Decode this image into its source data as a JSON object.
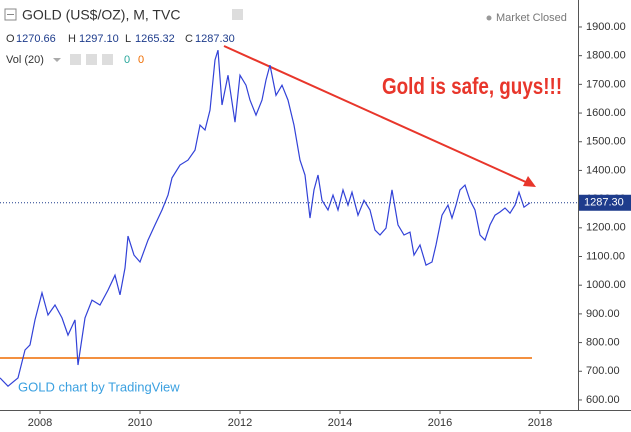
{
  "chart_data": {
    "type": "line",
    "title": "GOLD (US$/OZ), M, TVC",
    "status": "Market Closed",
    "ohlc": {
      "labels": [
        "O",
        "H",
        "L",
        "C"
      ],
      "values": [
        1270.66,
        1297.1,
        1265.32,
        1287.3
      ],
      "value_labels": [
        "1270.66",
        "1297.10",
        "1265.32",
        "1287.30"
      ]
    },
    "volume": {
      "name": "Vol (20)",
      "values": [
        0,
        0
      ],
      "colors": [
        "#26a69a",
        "#ef6c00"
      ]
    },
    "annotation": "Gold is safe, guys!!!",
    "annotation_color": "#e8362b",
    "watermark": "GOLD chart by TradingView",
    "last_price": 1287.3,
    "last_price_label": "1287.30",
    "color": "#3242d8",
    "x": [
      2007.2,
      2007.36,
      2007.56,
      2007.7,
      2007.8,
      2007.9,
      2008.04,
      2008.16,
      2008.3,
      2008.44,
      2008.56,
      2008.7,
      2008.76,
      2008.9,
      2009.04,
      2009.2,
      2009.36,
      2009.5,
      2009.6,
      2009.7,
      2009.76,
      2009.88,
      2010,
      2010.16,
      2010.3,
      2010.44,
      2010.56,
      2010.64,
      2010.8,
      2010.96,
      2011.1,
      2011.2,
      2011.3,
      2011.4,
      2011.5,
      2011.56,
      2011.64,
      2011.76,
      2011.9,
      2012,
      2012.12,
      2012.2,
      2012.32,
      2012.44,
      2012.52,
      2012.6,
      2012.72,
      2012.84,
      2012.96,
      2013.08,
      2013.2,
      2013.3,
      2013.4,
      2013.48,
      2013.56,
      2013.64,
      2013.76,
      2013.86,
      2013.96,
      2014.06,
      2014.16,
      2014.24,
      2014.36,
      2014.48,
      2014.6,
      2014.7,
      2014.8,
      2014.92,
      2015.04,
      2015.16,
      2015.28,
      2015.4,
      2015.48,
      2015.6,
      2015.72,
      2015.84,
      2015.92,
      2016.04,
      2016.16,
      2016.24,
      2016.32,
      2016.4,
      2016.5,
      2016.6,
      2016.7,
      2016.8,
      2016.9,
      2017,
      2017.1,
      2017.2,
      2017.3,
      2017.4,
      2017.5,
      2017.58,
      2017.68,
      2017.8
    ],
    "values": [
      677,
      648,
      677,
      774,
      792,
      879,
      973,
      896,
      931,
      886,
      826,
      879,
      722,
      886,
      948,
      931,
      983,
      1035,
      966,
      1060,
      1171,
      1105,
      1081,
      1157,
      1210,
      1262,
      1314,
      1374,
      1419,
      1436,
      1471,
      1558,
      1541,
      1610,
      1785,
      1819,
      1628,
      1732,
      1568,
      1732,
      1697,
      1645,
      1593,
      1645,
      1715,
      1767,
      1662,
      1697,
      1645,
      1558,
      1436,
      1384,
      1234,
      1332,
      1384,
      1296,
      1262,
      1314,
      1262,
      1332,
      1279,
      1324,
      1244,
      1296,
      1262,
      1192,
      1175,
      1199,
      1332,
      1210,
      1175,
      1185,
      1105,
      1140,
      1070,
      1081,
      1140,
      1244,
      1279,
      1234,
      1279,
      1332,
      1349,
      1296,
      1262,
      1175,
      1157,
      1210,
      1244,
      1255,
      1269,
      1251,
      1279,
      1324,
      1272,
      1287.3
    ],
    "xlim": [
      2007.2,
      2018.76
    ],
    "xticks": [
      2008,
      2010,
      2012,
      2014,
      2016,
      2018
    ],
    "ylim": [
      565,
      1994
    ],
    "yticks": [
      {
        "value": 600,
        "label": "600.00"
      },
      {
        "value": 700,
        "label": "700.00"
      },
      {
        "value": 800,
        "label": "800.00"
      },
      {
        "value": 900,
        "label": "900.00"
      },
      {
        "value": 1000,
        "label": "1000.00"
      },
      {
        "value": 1100,
        "label": "1100.00"
      },
      {
        "value": 1200,
        "label": "1200.00"
      },
      {
        "value": 1300,
        "label": "1300.00"
      },
      {
        "value": 1400,
        "label": "1400.00"
      },
      {
        "value": 1500,
        "label": "1500.00"
      },
      {
        "value": 1600,
        "label": "1600.00"
      },
      {
        "value": 1700,
        "label": "1700.00"
      },
      {
        "value": 1800,
        "label": "1800.00"
      },
      {
        "value": 1900,
        "label": "1900.00"
      }
    ]
  }
}
